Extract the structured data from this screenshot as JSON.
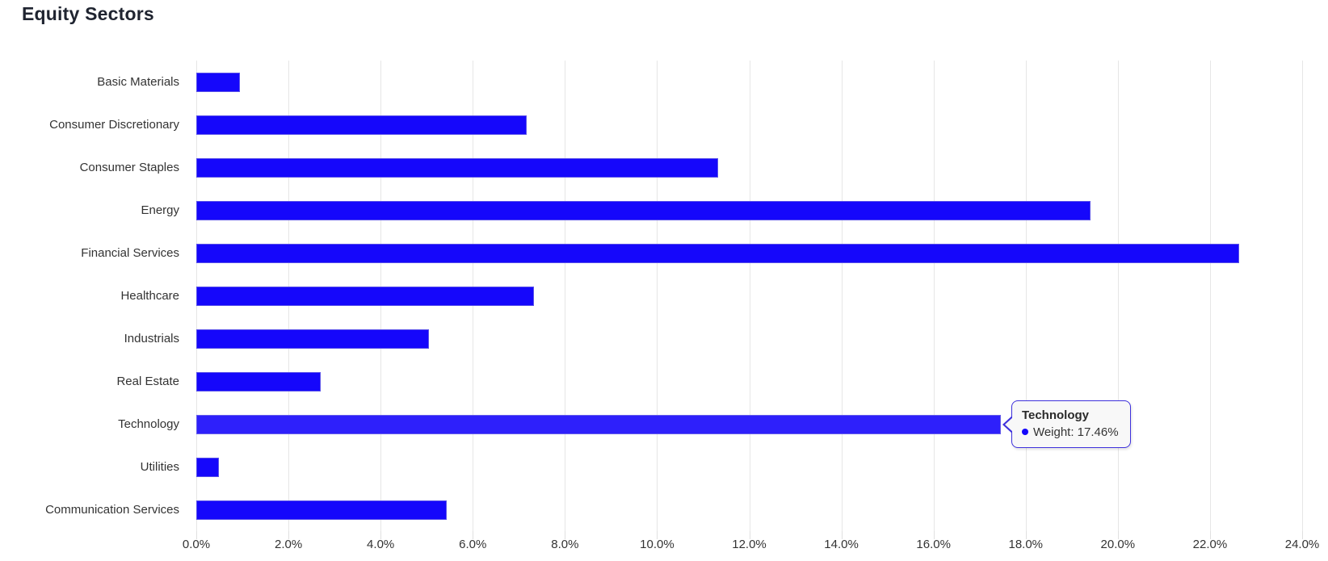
{
  "title": "Equity Sectors",
  "colors": {
    "bar": "#1507fb",
    "bar_hover": "#2e20fb",
    "tooltip_border": "#3e31dc",
    "grid": "#e6e6e6",
    "title_text": "#1f2430",
    "label_text": "#333333"
  },
  "tooltip": {
    "title": "Technology",
    "text": "Weight: 17.46%",
    "marker_icon": "point-marker-icon"
  },
  "chart_data": {
    "type": "bar",
    "orientation": "horizontal",
    "title": "Equity Sectors",
    "xlabel": "",
    "ylabel": "",
    "xlim": [
      0,
      24
    ],
    "grid": "vertical",
    "legend": "none",
    "x_tick_labels": [
      "0.0%",
      "2.0%",
      "4.0%",
      "6.0%",
      "8.0%",
      "10.0%",
      "12.0%",
      "14.0%",
      "16.0%",
      "18.0%",
      "20.0%",
      "22.0%",
      "24.0%"
    ],
    "categories": [
      "Basic Materials",
      "Consumer Discretionary",
      "Consumer Staples",
      "Energy",
      "Financial Services",
      "Healthcare",
      "Industrials",
      "Real Estate",
      "Technology",
      "Utilities",
      "Communication Services"
    ],
    "series": [
      {
        "name": "Weight",
        "unit": "%",
        "values": [
          0.94,
          7.17,
          11.32,
          19.41,
          22.64,
          7.33,
          5.05,
          2.7,
          17.46,
          0.49,
          5.44
        ]
      }
    ],
    "hovered_category": "Technology",
    "hovered_value_label": "Weight: 17.46%"
  }
}
